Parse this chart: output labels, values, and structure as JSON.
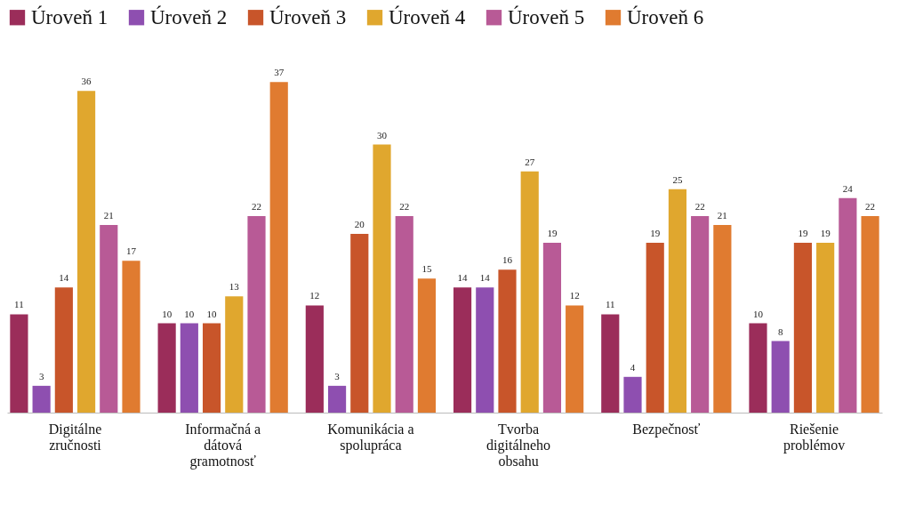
{
  "chart_data": {
    "type": "bar",
    "categories": [
      "Digitálne zručnosti",
      "Informačná a dátová gramotnosť",
      "Komunikácia a spolupráca",
      "Tvorba digitálneho obsahu",
      "Bezpečnosť",
      "Riešenie problémov"
    ],
    "series": [
      {
        "name": "Úroveň 1",
        "color": "#9b2d5a",
        "values": [
          11,
          10,
          12,
          14,
          11,
          10
        ]
      },
      {
        "name": "Úroveň 2",
        "color": "#8e4fb0",
        "values": [
          3,
          10,
          3,
          14,
          4,
          8
        ]
      },
      {
        "name": "Úroveň 3",
        "color": "#c8552a",
        "values": [
          14,
          10,
          20,
          16,
          19,
          19
        ]
      },
      {
        "name": "Úroveň 4",
        "color": "#e0a72e",
        "values": [
          36,
          13,
          30,
          27,
          25,
          19
        ]
      },
      {
        "name": "Úroveň 5",
        "color": "#b85a96",
        "values": [
          21,
          22,
          22,
          19,
          22,
          24
        ]
      },
      {
        "name": "Úroveň 6",
        "color": "#e07b30",
        "values": [
          17,
          37,
          15,
          12,
          21,
          22
        ]
      }
    ],
    "data_labels": true,
    "legend": "top",
    "grid": false
  }
}
